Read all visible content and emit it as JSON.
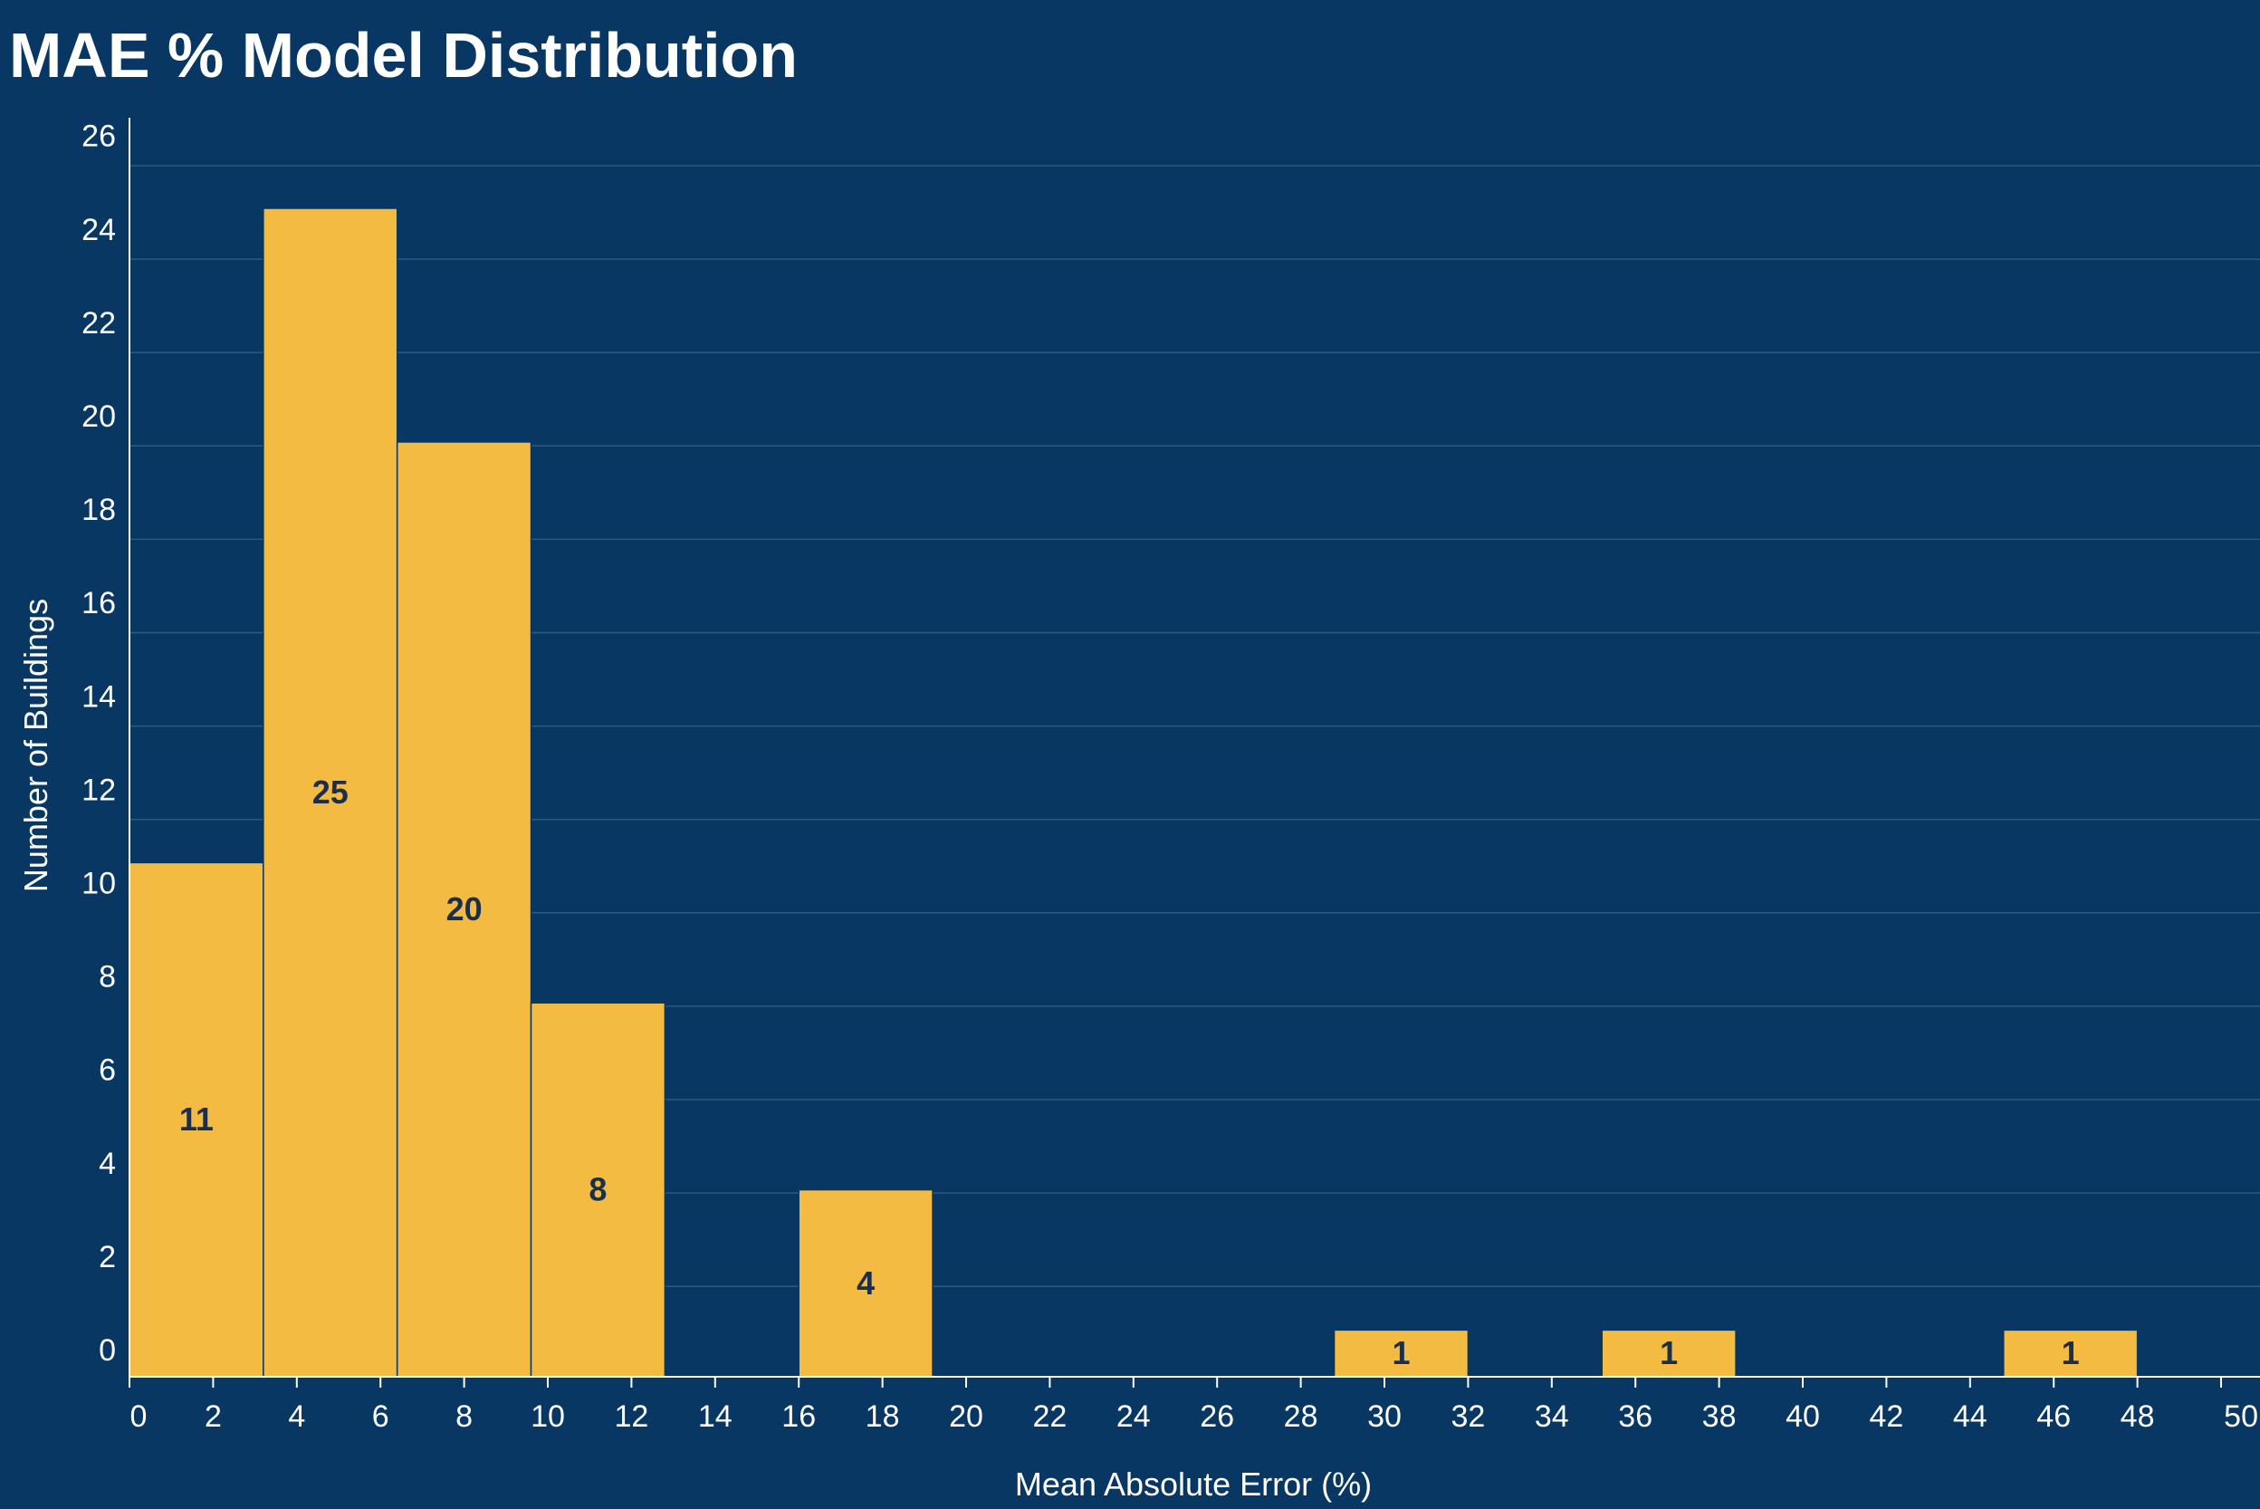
{
  "chart_data": {
    "type": "bar",
    "title": "MAE % Model Distribution",
    "xlabel": "Mean Absolute Error (%)",
    "ylabel": "Number of Buildings",
    "xlim": [
      0,
      50
    ],
    "ylim": [
      0,
      26
    ],
    "x_ticks": [
      0,
      2,
      4,
      6,
      8,
      10,
      12,
      14,
      16,
      18,
      20,
      22,
      24,
      26,
      28,
      30,
      32,
      34,
      36,
      38,
      40,
      42,
      44,
      46,
      48,
      50
    ],
    "y_ticks": [
      0,
      2,
      4,
      6,
      8,
      10,
      12,
      14,
      16,
      18,
      20,
      22,
      24,
      26
    ],
    "grid": true,
    "colors": {
      "background": "#083763",
      "bar": "#f3bb42",
      "bar_label": "#1c2f4a",
      "grid": "#2d5a80",
      "text": "#ffffff"
    },
    "bins": [
      {
        "x0": 0.0,
        "x1": 3.2,
        "value": 11,
        "label": "11"
      },
      {
        "x0": 3.2,
        "x1": 6.4,
        "value": 25,
        "label": "25"
      },
      {
        "x0": 6.4,
        "x1": 9.6,
        "value": 20,
        "label": "20"
      },
      {
        "x0": 9.6,
        "x1": 12.8,
        "value": 8,
        "label": "8"
      },
      {
        "x0": 16.0,
        "x1": 19.2,
        "value": 4,
        "label": "4"
      },
      {
        "x0": 28.8,
        "x1": 32.0,
        "value": 1,
        "label": "1"
      },
      {
        "x0": 35.2,
        "x1": 38.4,
        "value": 1,
        "label": "1"
      },
      {
        "x0": 44.8,
        "x1": 48.0,
        "value": 1,
        "label": "1"
      }
    ]
  }
}
